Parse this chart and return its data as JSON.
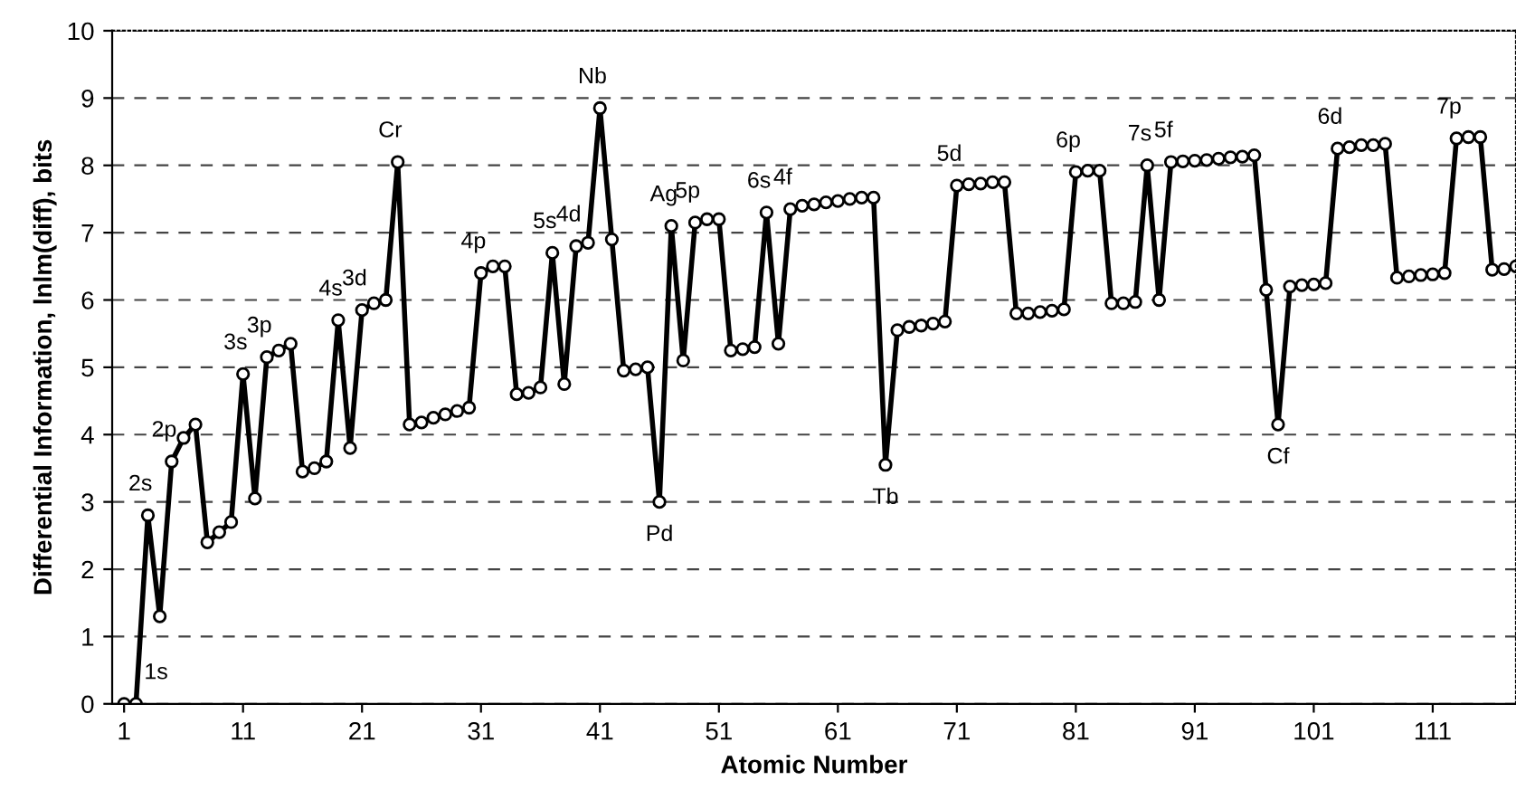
{
  "chart_data": {
    "type": "line",
    "xlabel": "Atomic Number",
    "ylabel": "Differential Information, lnlm(diff), bits",
    "x": [
      1,
      2,
      3,
      4,
      5,
      6,
      7,
      8,
      9,
      10,
      11,
      12,
      13,
      14,
      15,
      16,
      17,
      18,
      19,
      20,
      21,
      22,
      23,
      24,
      25,
      26,
      27,
      28,
      29,
      30,
      31,
      32,
      33,
      34,
      35,
      36,
      37,
      38,
      39,
      40,
      41,
      42,
      43,
      44,
      45,
      46,
      47,
      48,
      49,
      50,
      51,
      52,
      53,
      54,
      55,
      56,
      57,
      58,
      59,
      60,
      61,
      62,
      63,
      64,
      65,
      66,
      67,
      68,
      69,
      70,
      71,
      72,
      73,
      74,
      75,
      76,
      77,
      78,
      79,
      80,
      81,
      82,
      83,
      84,
      85,
      86,
      87,
      88,
      89,
      90,
      91,
      92,
      93,
      94,
      95,
      96,
      97,
      98,
      99,
      100,
      101,
      102,
      103,
      104,
      105,
      106,
      107,
      108,
      109,
      110,
      111,
      112,
      113,
      114,
      115,
      116,
      117,
      118
    ],
    "series": [
      {
        "color": "#000000",
        "values": [
          0,
          0,
          2.8,
          1.3,
          3.6,
          3.95,
          4.15,
          2.4,
          2.55,
          2.7,
          4.9,
          3.05,
          5.15,
          5.25,
          5.35,
          3.45,
          3.5,
          3.6,
          5.7,
          3.8,
          5.85,
          5.95,
          6.0,
          8.05,
          4.15,
          4.18,
          4.25,
          4.3,
          4.35,
          4.4,
          6.4,
          6.5,
          6.5,
          4.6,
          4.62,
          4.7,
          6.7,
          4.75,
          6.8,
          6.85,
          8.85,
          6.9,
          4.95,
          4.97,
          5.0,
          3.0,
          7.1,
          5.1,
          7.15,
          7.2,
          7.2,
          5.25,
          5.27,
          5.3,
          7.3,
          5.35,
          7.35,
          7.4,
          7.42,
          7.45,
          7.47,
          7.5,
          7.52,
          7.52,
          3.55,
          5.55,
          5.6,
          5.62,
          5.65,
          5.68,
          7.7,
          7.72,
          7.73,
          7.75,
          7.75,
          5.8,
          5.8,
          5.82,
          5.84,
          5.86,
          7.9,
          7.92,
          7.92,
          5.95,
          5.95,
          5.97,
          8.0,
          6.0,
          8.05,
          8.06,
          8.07,
          8.08,
          8.1,
          8.12,
          8.13,
          8.15,
          6.15,
          4.15,
          6.2,
          6.22,
          6.23,
          6.25,
          8.25,
          8.27,
          8.3,
          8.3,
          8.32,
          6.33,
          6.35,
          6.37,
          6.38,
          6.4,
          8.4,
          8.42,
          8.42,
          6.45,
          6.46,
          6.5
        ]
      }
    ],
    "xlim": [
      0,
      118
    ],
    "ylim": [
      0,
      10
    ],
    "xticks": [
      1,
      11,
      21,
      31,
      41,
      51,
      61,
      71,
      81,
      91,
      101,
      111
    ],
    "yticks": [
      0,
      1,
      2,
      3,
      4,
      5,
      6,
      7,
      8,
      9,
      10
    ],
    "grid": "y",
    "marker": "circle",
    "line_style": "solid",
    "annotations": [
      {
        "text": "1s",
        "x": 2,
        "y": 0
      },
      {
        "text": "2s",
        "x": 3,
        "y": 2.8
      },
      {
        "text": "2p",
        "x": 5,
        "y": 3.6
      },
      {
        "text": "3s",
        "x": 11,
        "y": 4.9
      },
      {
        "text": "3p",
        "x": 13,
        "y": 5.15
      },
      {
        "text": "4s",
        "x": 19,
        "y": 5.7
      },
      {
        "text": "3d",
        "x": 21,
        "y": 5.85
      },
      {
        "text": "Cr",
        "x": 24,
        "y": 8.05
      },
      {
        "text": "4p",
        "x": 31,
        "y": 6.4
      },
      {
        "text": "5s",
        "x": 37,
        "y": 6.7
      },
      {
        "text": "4d",
        "x": 39,
        "y": 6.8
      },
      {
        "text": "Nb",
        "x": 41,
        "y": 8.85
      },
      {
        "text": "Pd",
        "x": 46,
        "y": 3.0
      },
      {
        "text": "Ag",
        "x": 47,
        "y": 7.1
      },
      {
        "text": "5p",
        "x": 49,
        "y": 7.15
      },
      {
        "text": "6s",
        "x": 55,
        "y": 7.3
      },
      {
        "text": "4f",
        "x": 57,
        "y": 7.35
      },
      {
        "text": "Tb",
        "x": 65,
        "y": 3.55
      },
      {
        "text": "5d",
        "x": 71,
        "y": 7.7
      },
      {
        "text": "6p",
        "x": 81,
        "y": 7.9
      },
      {
        "text": "7s",
        "x": 87,
        "y": 8.0
      },
      {
        "text": "5f",
        "x": 89,
        "y": 8.05
      },
      {
        "text": "Cf",
        "x": 98,
        "y": 4.15
      },
      {
        "text": "6d",
        "x": 103,
        "y": 8.25
      },
      {
        "text": "7p",
        "x": 113,
        "y": 8.4
      }
    ]
  }
}
